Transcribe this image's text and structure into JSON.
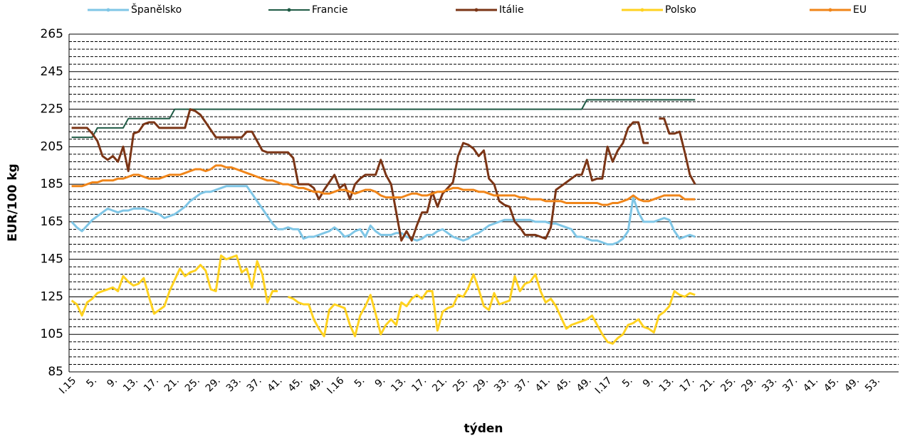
{
  "chart_data": {
    "type": "line",
    "x_title": "týden",
    "y_title": "EUR/100 kg",
    "legend": "top",
    "grid": true,
    "ylim": [
      85,
      265
    ],
    "yticks": [
      85,
      105,
      125,
      145,
      165,
      185,
      205,
      225,
      245,
      265
    ],
    "minor_yticks": [
      89,
      93,
      97,
      101,
      109,
      113,
      117,
      121,
      129,
      133,
      137,
      141,
      149,
      153,
      157,
      161,
      169,
      173,
      177,
      181,
      189,
      193,
      197,
      201,
      209,
      213,
      217,
      221,
      229,
      233,
      237,
      241,
      249,
      253,
      257,
      261
    ],
    "categories": [
      "I.15",
      null,
      null,
      null,
      "5.",
      null,
      null,
      null,
      "9.",
      null,
      null,
      null,
      "13.",
      null,
      null,
      null,
      "17.",
      null,
      null,
      null,
      "21.",
      null,
      null,
      null,
      "25.",
      null,
      null,
      null,
      "29.",
      null,
      null,
      null,
      "33.",
      null,
      null,
      null,
      "37.",
      null,
      null,
      null,
      "41.",
      null,
      null,
      null,
      "45.",
      null,
      null,
      null,
      "49.",
      null,
      null,
      null,
      "I.16",
      null,
      null,
      null,
      "5.",
      null,
      null,
      null,
      "9.",
      null,
      null,
      null,
      "13.",
      null,
      null,
      null,
      "17.",
      null,
      null,
      null,
      "21.",
      null,
      null,
      null,
      "25.",
      null,
      null,
      null,
      "29.",
      null,
      null,
      null,
      "33.",
      null,
      null,
      null,
      "37.",
      null,
      null,
      null,
      "41.",
      null,
      null,
      null,
      "45.",
      null,
      null,
      null,
      "49.",
      null,
      null,
      null,
      "I.17",
      null,
      null,
      null,
      "5.",
      null,
      null,
      null,
      "9.",
      null,
      null,
      null,
      "13.",
      null,
      null,
      null,
      "17.",
      null,
      null,
      null,
      "21.",
      null,
      null,
      null,
      "25.",
      null,
      null,
      null,
      "29.",
      null,
      null,
      null,
      "33.",
      null,
      null,
      null,
      "37.",
      null,
      null,
      null,
      "41.",
      null,
      null,
      null,
      "45.",
      null,
      null,
      null,
      "49.",
      null,
      null,
      null,
      "53."
    ],
    "series": [
      {
        "name": "Španělsko",
        "color": "#7fc6e6",
        "values": [
          165,
          162,
          160,
          163,
          166,
          168,
          170,
          172,
          171,
          170,
          171,
          171,
          172,
          172,
          172,
          171,
          170,
          169,
          167,
          168,
          169,
          171,
          173,
          176,
          178,
          180,
          181,
          181,
          182,
          183,
          184,
          184,
          184,
          184,
          184,
          180,
          176,
          172,
          168,
          164,
          161,
          161,
          162,
          161,
          161,
          156,
          157,
          157,
          158,
          159,
          160,
          162,
          160,
          157,
          158,
          160,
          161,
          157,
          163,
          160,
          158,
          158,
          158,
          159,
          159,
          157,
          156,
          155,
          156,
          158,
          158,
          160,
          161,
          159,
          157,
          156,
          155,
          156,
          158,
          159,
          161,
          163,
          164,
          165,
          166,
          166,
          166,
          166,
          166,
          166,
          165,
          165,
          165,
          164,
          164,
          163,
          162,
          161,
          157,
          157,
          156,
          155,
          155,
          154,
          153,
          153,
          154,
          156,
          160,
          178,
          170,
          165,
          165,
          165,
          166,
          167,
          166,
          160,
          156,
          157,
          158,
          157,
          null,
          null,
          null,
          null,
          null,
          null,
          null,
          null,
          null,
          null,
          null,
          null,
          null,
          null,
          null,
          null,
          null,
          null,
          null,
          null,
          null,
          null,
          null,
          null,
          null,
          null,
          null,
          null,
          null,
          null,
          null,
          null,
          null,
          null,
          null
        ]
      },
      {
        "name": "Francie",
        "color": "#1e5a44",
        "values": [
          210,
          210,
          210,
          210,
          210,
          215,
          215,
          215,
          215,
          215,
          215,
          220,
          220,
          220,
          220,
          220,
          220,
          220,
          220,
          220,
          225,
          225,
          225,
          225,
          225,
          225,
          225,
          225,
          225,
          225,
          225,
          225,
          225,
          225,
          225,
          225,
          225,
          225,
          225,
          225,
          225,
          225,
          225,
          225,
          225,
          225,
          225,
          225,
          225,
          225,
          225,
          225,
          225,
          225,
          225,
          225,
          225,
          225,
          225,
          225,
          225,
          225,
          225,
          225,
          225,
          225,
          225,
          225,
          225,
          225,
          225,
          225,
          225,
          225,
          225,
          225,
          225,
          225,
          225,
          225,
          225,
          225,
          225,
          225,
          225,
          225,
          225,
          225,
          225,
          225,
          225,
          225,
          225,
          225,
          225,
          225,
          225,
          225,
          225,
          225,
          230,
          230,
          230,
          230,
          230,
          230,
          230,
          230,
          230,
          230,
          230,
          230,
          230,
          230,
          230,
          230,
          230,
          230,
          230,
          230,
          230,
          230,
          null,
          null,
          null,
          null,
          null,
          null,
          null,
          null,
          null,
          null,
          null,
          null,
          null,
          null,
          null,
          null,
          null,
          null,
          null,
          null,
          null,
          null,
          null,
          null,
          null,
          null,
          null,
          null,
          null,
          null,
          null,
          null,
          null,
          null,
          null
        ]
      },
      {
        "name": "Itálie",
        "color": "#7b3516",
        "values": [
          215,
          215,
          215,
          215,
          212,
          208,
          200,
          198,
          200,
          197,
          205,
          192,
          212,
          213,
          217,
          218,
          218,
          215,
          215,
          215,
          215,
          215,
          215,
          225,
          224,
          222,
          218,
          214,
          210,
          210,
          210,
          210,
          210,
          210,
          213,
          213,
          208,
          203,
          202,
          202,
          202,
          202,
          202,
          199,
          185,
          185,
          185,
          183,
          177,
          182,
          186,
          190,
          183,
          185,
          177,
          185,
          188,
          190,
          190,
          190,
          198,
          190,
          185,
          170,
          155,
          160,
          155,
          163,
          170,
          170,
          181,
          173,
          180,
          183,
          186,
          200,
          207,
          206,
          204,
          200,
          203,
          188,
          185,
          176,
          174,
          173,
          165,
          162,
          158,
          158,
          158,
          157,
          156,
          162,
          182,
          184,
          186,
          188,
          190,
          190,
          198,
          187,
          188,
          188,
          205,
          197,
          203,
          207,
          215,
          218,
          218,
          207,
          207,
          null,
          220,
          220,
          212,
          212,
          213,
          202,
          190,
          185,
          null,
          null,
          null,
          null,
          null,
          null,
          null,
          null,
          null,
          null,
          null,
          null,
          null,
          null,
          null,
          null,
          null,
          null,
          null,
          null,
          null,
          null,
          null,
          null,
          null,
          null,
          null,
          null,
          null,
          null,
          null,
          null,
          null,
          null,
          null
        ]
      },
      {
        "name": "Polsko",
        "color": "#ffd21f",
        "values": [
          123,
          121,
          115,
          122,
          124,
          127,
          128,
          129,
          130,
          128,
          136,
          133,
          131,
          132,
          135,
          125,
          116,
          118,
          120,
          128,
          134,
          140,
          136,
          138,
          139,
          142,
          139,
          129,
          128,
          147,
          145,
          146,
          147,
          138,
          140,
          130,
          144,
          137,
          122,
          128,
          128,
          null,
          125,
          124,
          122,
          121,
          121,
          113,
          108,
          104,
          118,
          121,
          120,
          119,
          110,
          104,
          115,
          120,
          126,
          116,
          105,
          110,
          113,
          110,
          122,
          120,
          124,
          126,
          124,
          128,
          128,
          107,
          117,
          119,
          120,
          126,
          125,
          130,
          137,
          129,
          120,
          118,
          127,
          121,
          122,
          123,
          136,
          128,
          132,
          133,
          137,
          128,
          122,
          124,
          120,
          114,
          108,
          110,
          111,
          112,
          113,
          115,
          110,
          105,
          101,
          100,
          103,
          105,
          110,
          111,
          113,
          109,
          108,
          106,
          115,
          117,
          120,
          128,
          126,
          125,
          127,
          126,
          null,
          null,
          null,
          null,
          null,
          null,
          null,
          null,
          null,
          null,
          null,
          null,
          null,
          null,
          null,
          null,
          null,
          null,
          null,
          null,
          null,
          null,
          null,
          null,
          null,
          null,
          null,
          null,
          null,
          null,
          null,
          null,
          null,
          null,
          null
        ]
      },
      {
        "name": "EU",
        "color": "#f08519",
        "values": [
          184,
          184,
          184,
          185,
          186,
          186,
          187,
          187,
          187,
          188,
          188,
          189,
          190,
          190,
          189,
          188,
          188,
          188,
          189,
          190,
          190,
          190,
          191,
          192,
          193,
          193,
          192,
          193,
          195,
          195,
          194,
          194,
          193,
          192,
          191,
          190,
          189,
          188,
          187,
          187,
          186,
          185,
          185,
          184,
          183,
          183,
          182,
          181,
          181,
          180,
          180,
          181,
          182,
          182,
          181,
          180,
          181,
          182,
          182,
          181,
          179,
          178,
          178,
          178,
          178,
          179,
          180,
          180,
          179,
          179,
          180,
          181,
          181,
          182,
          183,
          183,
          182,
          182,
          182,
          181,
          181,
          180,
          179,
          179,
          179,
          179,
          179,
          178,
          178,
          177,
          177,
          177,
          176,
          176,
          176,
          176,
          175,
          175,
          175,
          175,
          175,
          175,
          175,
          174,
          174,
          175,
          175,
          176,
          177,
          179,
          177,
          176,
          176,
          177,
          178,
          179,
          179,
          179,
          179,
          177,
          177,
          177,
          null,
          null,
          null,
          null,
          null,
          null,
          null,
          null,
          null,
          null,
          null,
          null,
          null,
          null,
          null,
          null,
          null,
          null,
          null,
          null,
          null,
          null,
          null,
          null,
          null,
          null,
          null,
          null,
          null,
          null,
          null,
          null,
          null,
          null,
          null
        ]
      }
    ]
  }
}
